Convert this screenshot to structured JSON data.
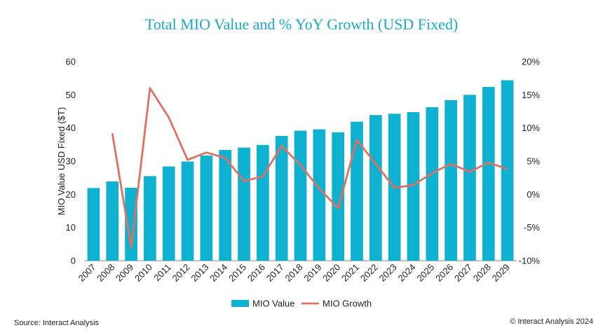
{
  "chart_data": {
    "type": "bar",
    "title": "Total MIO Value and % YoY Growth (USD Fixed)",
    "ylabel": "MIO Value USD Fixed ($T)",
    "categories": [
      "2007",
      "2008",
      "2009",
      "2010",
      "2011",
      "2012",
      "2013",
      "2014",
      "2015",
      "2016",
      "2017",
      "2018",
      "2019",
      "2020",
      "2021",
      "2022",
      "2023",
      "2024",
      "2025",
      "2026",
      "2027",
      "2028",
      "2029"
    ],
    "series": [
      {
        "name": "MIO Value",
        "type": "bar",
        "axis": "left",
        "color": "#0fb1d0",
        "values": [
          21.9,
          23.9,
          22.0,
          25.5,
          28.4,
          29.9,
          31.7,
          33.4,
          34.1,
          34.9,
          37.6,
          39.2,
          39.6,
          38.7,
          41.9,
          43.9,
          44.3,
          44.8,
          46.3,
          48.4,
          50.0,
          52.4,
          54.4
        ]
      },
      {
        "name": "MIO Growth",
        "type": "line",
        "axis": "right",
        "color": "#e07061",
        "values": [
          null,
          9.2,
          -8.0,
          16.0,
          11.6,
          5.2,
          6.3,
          5.5,
          2.0,
          2.7,
          7.3,
          4.4,
          0.9,
          -2.1,
          8.2,
          4.6,
          1.0,
          1.4,
          3.2,
          4.6,
          3.4,
          4.8,
          3.8
        ]
      }
    ],
    "ylim": [
      0,
      60
    ],
    "yticks": [
      "0",
      "10",
      "20",
      "30",
      "40",
      "50",
      "60"
    ],
    "y2lim": [
      -10,
      20
    ],
    "y2ticks": [
      "-10%",
      "-5%",
      "0%",
      "5%",
      "10%",
      "15%",
      "20%"
    ],
    "legend": "bottom-center",
    "grid": false
  },
  "footer": {
    "source": "Source: Interact Analysis",
    "copyright": "© Interact Analysis 2024"
  }
}
